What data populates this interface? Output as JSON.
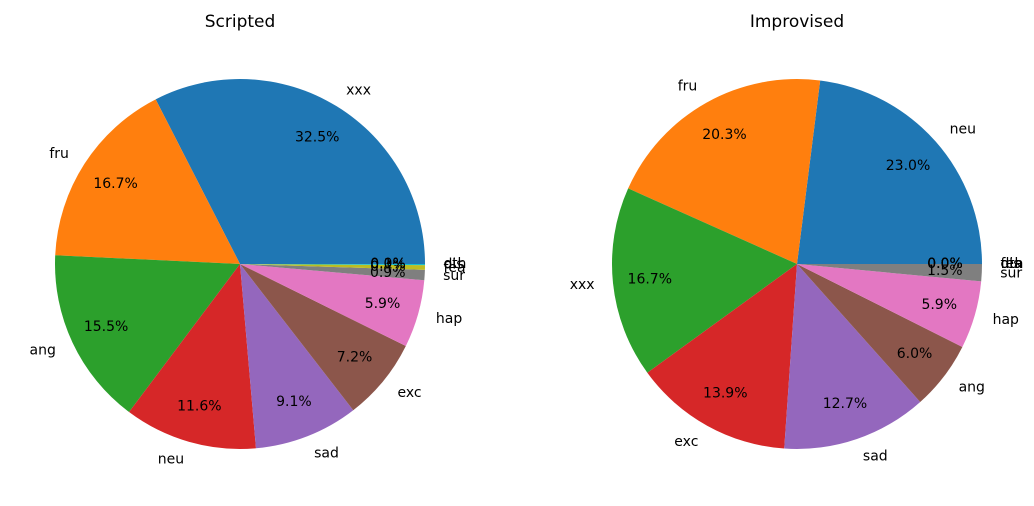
{
  "chart_data": [
    {
      "type": "pie",
      "title": "Scripted",
      "start_angle_deg": 0,
      "direction": "counterclockwise",
      "slices": [
        {
          "label": "xxx",
          "value": 32.5,
          "pct_text": "32.5%",
          "color": "#1f77b4"
        },
        {
          "label": "fru",
          "value": 16.7,
          "pct_text": "16.7%",
          "color": "#ff7f0e"
        },
        {
          "label": "ang",
          "value": 15.5,
          "pct_text": "15.5%",
          "color": "#2ca02c"
        },
        {
          "label": "neu",
          "value": 11.6,
          "pct_text": "11.6%",
          "color": "#d62728"
        },
        {
          "label": "sad",
          "value": 9.1,
          "pct_text": "9.1%",
          "color": "#9467bd"
        },
        {
          "label": "exc",
          "value": 7.2,
          "pct_text": "7.2%",
          "color": "#8c564b"
        },
        {
          "label": "hap",
          "value": 5.9,
          "pct_text": "5.9%",
          "color": "#e377c2"
        },
        {
          "label": "sur",
          "value": 0.9,
          "pct_text": "0.9%",
          "color": "#7f7f7f"
        },
        {
          "label": "fea",
          "value": 0.4,
          "pct_text": "0.4%",
          "color": "#bcbd22"
        },
        {
          "label": "dis",
          "value": 0.1,
          "pct_text": "0.1%",
          "color": "#17becf"
        },
        {
          "label": "oth",
          "value": 0.0,
          "pct_text": "0.0%",
          "color": "#1f77b4"
        }
      ]
    },
    {
      "type": "pie",
      "title": "Improvised",
      "start_angle_deg": 0,
      "direction": "counterclockwise",
      "slices": [
        {
          "label": "neu",
          "value": 23.0,
          "pct_text": "23.0%",
          "color": "#1f77b4"
        },
        {
          "label": "fru",
          "value": 20.3,
          "pct_text": "20.3%",
          "color": "#ff7f0e"
        },
        {
          "label": "xxx",
          "value": 16.7,
          "pct_text": "16.7%",
          "color": "#2ca02c"
        },
        {
          "label": "exc",
          "value": 13.9,
          "pct_text": "13.9%",
          "color": "#d62728"
        },
        {
          "label": "sad",
          "value": 12.7,
          "pct_text": "12.7%",
          "color": "#9467bd"
        },
        {
          "label": "ang",
          "value": 6.0,
          "pct_text": "6.0%",
          "color": "#8c564b"
        },
        {
          "label": "hap",
          "value": 5.9,
          "pct_text": "5.9%",
          "color": "#e377c2"
        },
        {
          "label": "sur",
          "value": 1.5,
          "pct_text": "1.5%",
          "color": "#7f7f7f"
        },
        {
          "label": "fea",
          "value": 0.0,
          "pct_text": "0.0%",
          "color": "#bcbd22"
        },
        {
          "label": "dis",
          "value": 0.0,
          "pct_text": "0.0%",
          "color": "#17becf"
        },
        {
          "label": "oth",
          "value": 0.0,
          "pct_text": "0.0%",
          "color": "#1f77b4"
        }
      ]
    }
  ]
}
